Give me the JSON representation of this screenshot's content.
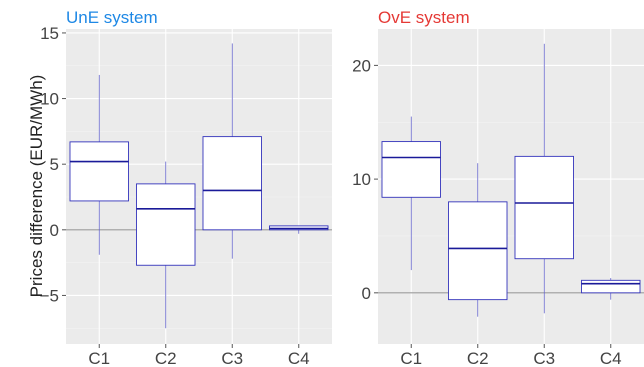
{
  "chart_data": [
    {
      "type": "box",
      "title": "UnE system",
      "title_color": "#1e88e5",
      "ylabel": "Prices difference (EUR/MWh)",
      "categories": [
        "C1",
        "C2",
        "C3",
        "C4"
      ],
      "ylim": [
        -8.7,
        15.3
      ],
      "yticks": [
        -5,
        0,
        5,
        10,
        15
      ],
      "yticklabels": [
        "−5",
        "0",
        "5",
        "10",
        "15"
      ],
      "reference_line": 0,
      "grid": true,
      "boxes": [
        {
          "min": -1.9,
          "q1": 2.2,
          "median": 5.2,
          "q3": 6.7,
          "max": 11.8
        },
        {
          "min": -7.5,
          "q1": -2.7,
          "median": 1.6,
          "q3": 3.5,
          "max": 5.2
        },
        {
          "min": -2.2,
          "q1": 0.0,
          "median": 3.0,
          "q3": 7.1,
          "max": 14.2
        },
        {
          "min": -0.3,
          "q1": 0.0,
          "median": 0.1,
          "q3": 0.3,
          "max": 0.3
        }
      ]
    },
    {
      "type": "box",
      "title": "OvE system",
      "title_color": "#e53935",
      "ylabel": "",
      "categories": [
        "C1",
        "C2",
        "C3",
        "C4"
      ],
      "ylim": [
        -4.5,
        23.2
      ],
      "yticks": [
        0,
        10,
        20
      ],
      "yticklabels": [
        "0",
        "10",
        "20"
      ],
      "reference_line": 0,
      "grid": true,
      "boxes": [
        {
          "min": 2.0,
          "q1": 8.4,
          "median": 11.9,
          "q3": 13.3,
          "max": 15.5
        },
        {
          "min": -2.1,
          "q1": -0.6,
          "median": 3.9,
          "q3": 8.0,
          "max": 11.4
        },
        {
          "min": -1.8,
          "q1": 3.0,
          "median": 7.9,
          "q3": 12.0,
          "max": 21.9
        },
        {
          "min": -0.6,
          "q1": 0.0,
          "median": 0.8,
          "q3": 1.1,
          "max": 1.3
        }
      ]
    }
  ]
}
